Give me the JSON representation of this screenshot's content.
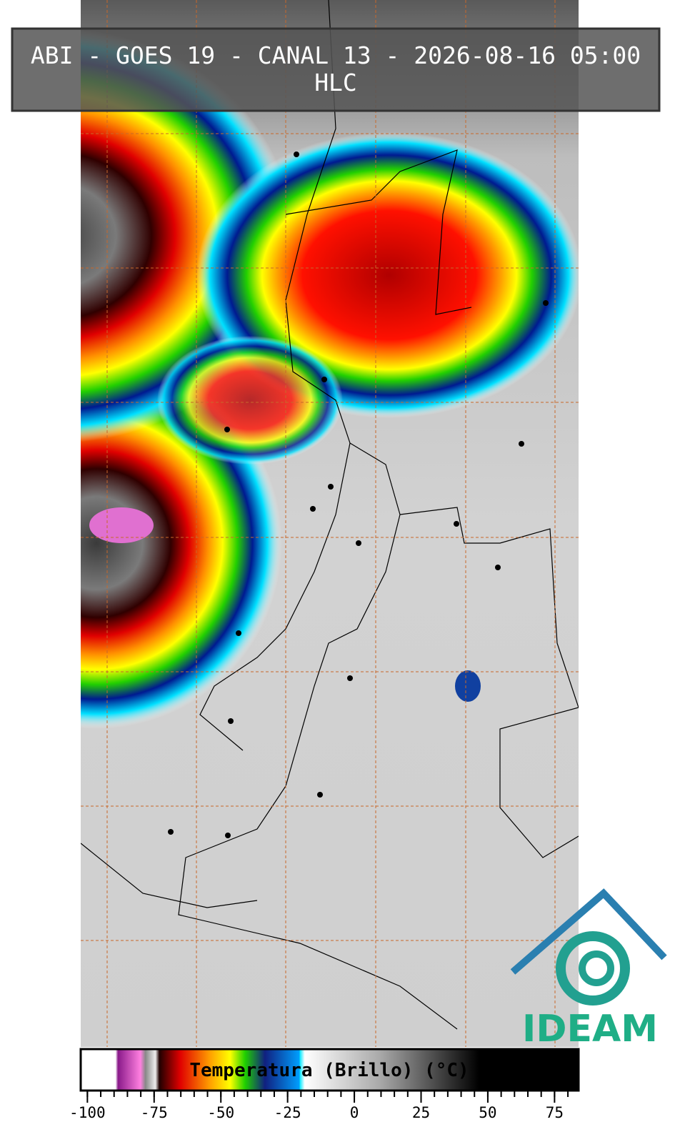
{
  "title": "ABI - GOES 19 - CANAL 13 - 2026-08-16 05:00",
  "subtitle": "HLC",
  "colorbar": {
    "label": "Temperatura (Brillo) (°C)",
    "range": [
      -102.5,
      84
    ],
    "ticks": [
      -100,
      -75,
      -50,
      -25,
      0,
      25,
      50,
      75
    ],
    "minor_tick_step": 5
  },
  "logo": {
    "text": "IDEAM"
  }
}
